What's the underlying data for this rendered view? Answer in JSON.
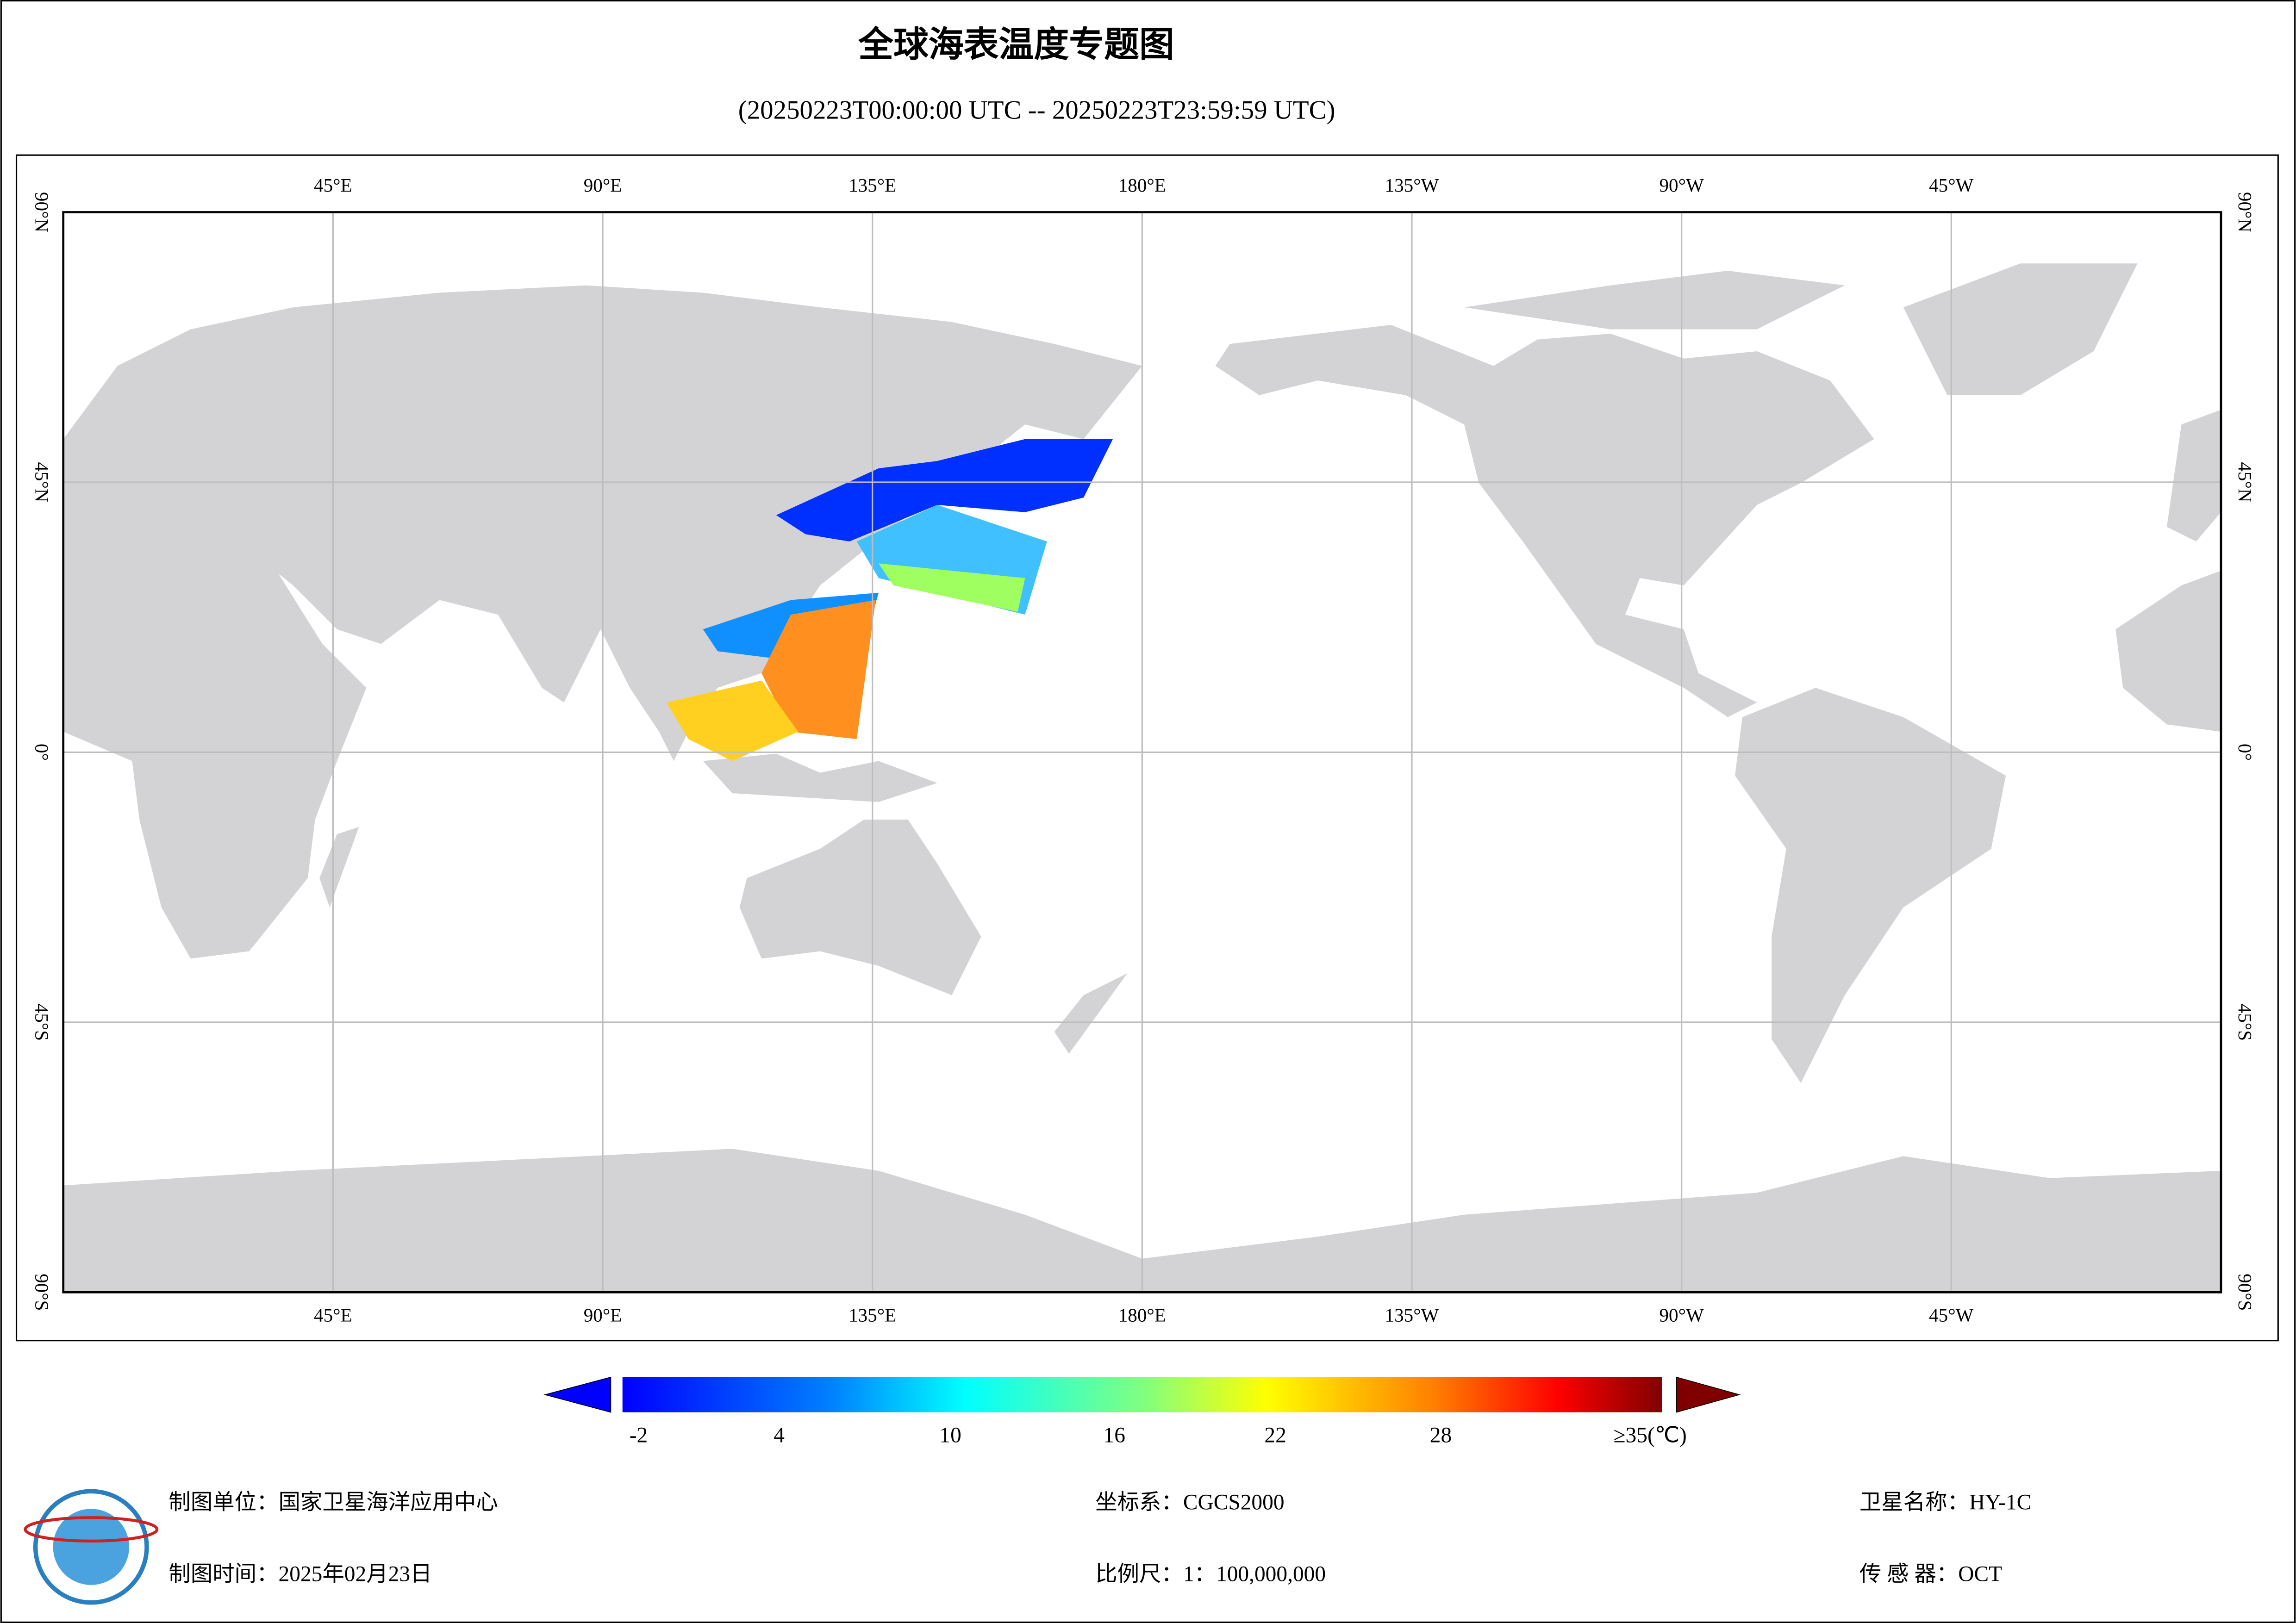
{
  "header": {
    "title": "全球海表温度专题图",
    "subtitle": "(20250223T00:00:00 UTC -- 20250223T23:59:59 UTC)"
  },
  "map": {
    "top_labels": [
      "45°E",
      "90°E",
      "135°E",
      "180°E",
      "135°W",
      "90°W",
      "45°W"
    ],
    "bottom_labels": [
      "45°E",
      "90°E",
      "135°E",
      "180°E",
      "135°W",
      "90°W",
      "45°W"
    ],
    "left_labels": [
      "90°N",
      "45°N",
      "0°",
      "45°S",
      "90°S"
    ],
    "right_labels": [
      "90°N",
      "45°N",
      "0°",
      "45°S",
      "90°S"
    ]
  },
  "colorbar": {
    "labels": [
      "-2",
      "4",
      "10",
      "16",
      "22",
      "28",
      "≥35(℃)"
    ]
  },
  "footer": {
    "producer": "制图单位：国家卫星海洋应用中心",
    "date": "制图时间：2025年02月23日",
    "coordinate_system": "坐标系：CGCS2000",
    "scale": "比例尺：1：100,000,000",
    "satellite": "卫星名称：HY-1C",
    "sensor": "传 感 器：OCT"
  }
}
